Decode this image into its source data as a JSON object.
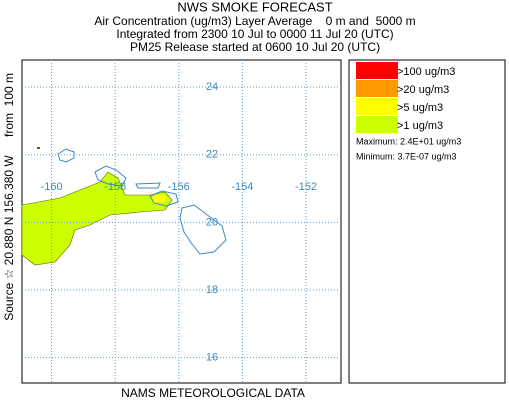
{
  "header": {
    "title": "NWS SMOKE FORECAST",
    "lines": [
      "Air Concentration (ug/m3) Layer Average    0 m and  5000 m",
      "Integrated from 2300 10 Jul to 0000 11 Jul 20 (UTC)",
      "PM25 Release started at 0600 10 Jul 20 (UTC)"
    ]
  },
  "map": {
    "lon_ticks": [
      -160,
      -158,
      -156,
      -154,
      -152
    ],
    "lat_ticks": [
      24,
      22,
      20,
      18,
      16
    ],
    "lon_lim": [
      -160.93,
      -150.9
    ],
    "lat_lim": [
      15.25,
      24.8
    ],
    "source_label": "Source ☆ 20.880 N 156.380 W",
    "height_label": "from  100 m",
    "footer": "NAMS METEOROLOGICAL DATA"
  },
  "legend": {
    "entries": [
      {
        "label": ">100 ug/m3",
        "color": "#ff0000"
      },
      {
        "label": ">20 ug/m3",
        "color": "#ff9900"
      },
      {
        "label": ">5 ug/m3",
        "color": "#ffff00"
      },
      {
        "label": ">1 ug/m3",
        "color": "#ccff00"
      }
    ],
    "maximum": "Maximum: 2.4E+01 ug/m3",
    "minimum": "Minimum: 3.7E-07 ug/m3"
  }
}
